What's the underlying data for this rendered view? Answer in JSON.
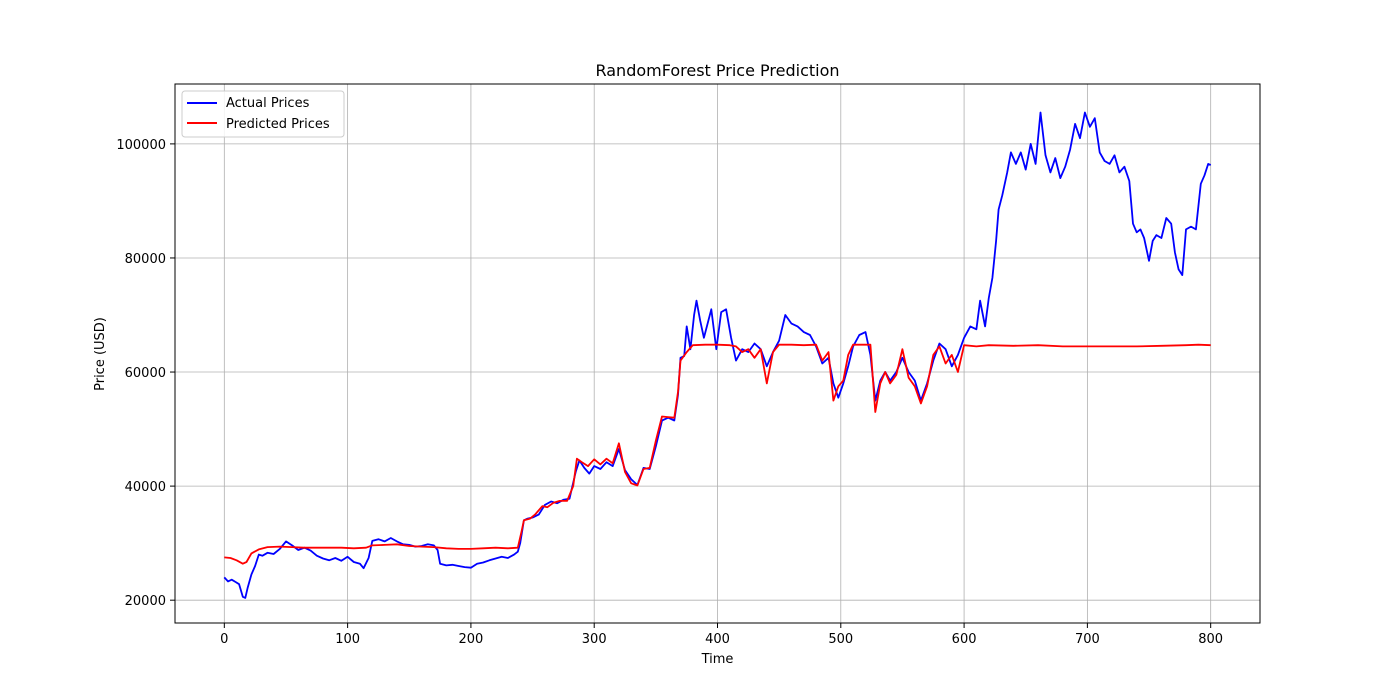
{
  "chart_data": {
    "type": "line",
    "title": "RandomForest Price Prediction",
    "xlabel": "Time",
    "ylabel": "Price (USD)",
    "xlim": [
      -40,
      840
    ],
    "ylim": [
      16000,
      110500
    ],
    "xticks": [
      0,
      100,
      200,
      300,
      400,
      500,
      600,
      700,
      800
    ],
    "yticks": [
      20000,
      40000,
      60000,
      80000,
      100000
    ],
    "grid": true,
    "legend_position": "upper-left",
    "series": [
      {
        "name": "Actual Prices",
        "color": "#0000ff",
        "points": [
          [
            0,
            24000
          ],
          [
            3,
            23300
          ],
          [
            6,
            23600
          ],
          [
            9,
            23200
          ],
          [
            12,
            22800
          ],
          [
            15,
            20600
          ],
          [
            17,
            20400
          ],
          [
            19,
            22200
          ],
          [
            22,
            24500
          ],
          [
            25,
            26000
          ],
          [
            28,
            28000
          ],
          [
            31,
            27800
          ],
          [
            35,
            28300
          ],
          [
            40,
            28100
          ],
          [
            45,
            29000
          ],
          [
            50,
            30300
          ],
          [
            55,
            29600
          ],
          [
            60,
            28800
          ],
          [
            65,
            29200
          ],
          [
            70,
            28700
          ],
          [
            75,
            27800
          ],
          [
            80,
            27300
          ],
          [
            85,
            27000
          ],
          [
            90,
            27400
          ],
          [
            95,
            26900
          ],
          [
            100,
            27600
          ],
          [
            105,
            26700
          ],
          [
            110,
            26400
          ],
          [
            113,
            25600
          ],
          [
            117,
            27400
          ],
          [
            120,
            30400
          ],
          [
            125,
            30700
          ],
          [
            130,
            30300
          ],
          [
            135,
            30900
          ],
          [
            140,
            30300
          ],
          [
            145,
            29800
          ],
          [
            150,
            29700
          ],
          [
            155,
            29400
          ],
          [
            160,
            29500
          ],
          [
            165,
            29800
          ],
          [
            170,
            29600
          ],
          [
            173,
            28800
          ],
          [
            175,
            26400
          ],
          [
            180,
            26100
          ],
          [
            185,
            26200
          ],
          [
            190,
            26000
          ],
          [
            195,
            25800
          ],
          [
            200,
            25700
          ],
          [
            205,
            26400
          ],
          [
            210,
            26600
          ],
          [
            215,
            27000
          ],
          [
            220,
            27300
          ],
          [
            225,
            27600
          ],
          [
            230,
            27400
          ],
          [
            235,
            28000
          ],
          [
            238,
            28500
          ],
          [
            240,
            30000
          ],
          [
            243,
            34000
          ],
          [
            246,
            34300
          ],
          [
            250,
            34500
          ],
          [
            255,
            35000
          ],
          [
            260,
            36700
          ],
          [
            265,
            37300
          ],
          [
            270,
            37000
          ],
          [
            275,
            37600
          ],
          [
            280,
            37800
          ],
          [
            285,
            42500
          ],
          [
            288,
            44500
          ],
          [
            292,
            43200
          ],
          [
            296,
            42200
          ],
          [
            300,
            43500
          ],
          [
            305,
            43000
          ],
          [
            310,
            44200
          ],
          [
            315,
            43500
          ],
          [
            320,
            46500
          ],
          [
            325,
            42800
          ],
          [
            330,
            41200
          ],
          [
            335,
            40200
          ],
          [
            340,
            43200
          ],
          [
            345,
            43000
          ],
          [
            350,
            47000
          ],
          [
            355,
            51500
          ],
          [
            360,
            52000
          ],
          [
            365,
            51500
          ],
          [
            368,
            56000
          ],
          [
            370,
            62500
          ],
          [
            373,
            62800
          ],
          [
            375,
            68000
          ],
          [
            378,
            64000
          ],
          [
            381,
            70000
          ],
          [
            383,
            72500
          ],
          [
            386,
            69000
          ],
          [
            389,
            66000
          ],
          [
            392,
            68500
          ],
          [
            395,
            71000
          ],
          [
            399,
            64000
          ],
          [
            403,
            70500
          ],
          [
            407,
            71000
          ],
          [
            411,
            66000
          ],
          [
            415,
            62000
          ],
          [
            420,
            64000
          ],
          [
            425,
            63500
          ],
          [
            430,
            65000
          ],
          [
            435,
            64000
          ],
          [
            440,
            61000
          ],
          [
            445,
            63500
          ],
          [
            450,
            65500
          ],
          [
            455,
            70000
          ],
          [
            460,
            68500
          ],
          [
            465,
            68000
          ],
          [
            470,
            67000
          ],
          [
            475,
            66500
          ],
          [
            480,
            64500
          ],
          [
            485,
            61500
          ],
          [
            490,
            62500
          ],
          [
            494,
            58000
          ],
          [
            498,
            55500
          ],
          [
            502,
            58000
          ],
          [
            506,
            61000
          ],
          [
            510,
            64500
          ],
          [
            515,
            66500
          ],
          [
            520,
            67000
          ],
          [
            524,
            63000
          ],
          [
            528,
            55000
          ],
          [
            532,
            58500
          ],
          [
            536,
            60000
          ],
          [
            540,
            58500
          ],
          [
            545,
            60000
          ],
          [
            550,
            62500
          ],
          [
            555,
            60000
          ],
          [
            560,
            58500
          ],
          [
            565,
            55000
          ],
          [
            570,
            58000
          ],
          [
            575,
            62000
          ],
          [
            580,
            65000
          ],
          [
            585,
            64000
          ],
          [
            590,
            61000
          ],
          [
            595,
            63000
          ],
          [
            600,
            66000
          ],
          [
            605,
            68000
          ],
          [
            610,
            67500
          ],
          [
            613,
            72500
          ],
          [
            617,
            68000
          ],
          [
            620,
            73000
          ],
          [
            623,
            76500
          ],
          [
            626,
            83000
          ],
          [
            628,
            88500
          ],
          [
            631,
            91000
          ],
          [
            635,
            95000
          ],
          [
            638,
            98500
          ],
          [
            642,
            96500
          ],
          [
            646,
            98500
          ],
          [
            650,
            95500
          ],
          [
            654,
            100000
          ],
          [
            658,
            96500
          ],
          [
            662,
            105500
          ],
          [
            666,
            98000
          ],
          [
            670,
            95000
          ],
          [
            674,
            97500
          ],
          [
            678,
            94000
          ],
          [
            682,
            96000
          ],
          [
            686,
            99000
          ],
          [
            690,
            103500
          ],
          [
            694,
            101000
          ],
          [
            698,
            105500
          ],
          [
            702,
            103000
          ],
          [
            706,
            104500
          ],
          [
            710,
            98500
          ],
          [
            714,
            97000
          ],
          [
            718,
            96500
          ],
          [
            722,
            98000
          ],
          [
            726,
            95000
          ],
          [
            730,
            96000
          ],
          [
            734,
            93500
          ],
          [
            737,
            86000
          ],
          [
            740,
            84500
          ],
          [
            743,
            85000
          ],
          [
            746,
            83500
          ],
          [
            750,
            79500
          ],
          [
            753,
            83000
          ],
          [
            756,
            84000
          ],
          [
            760,
            83500
          ],
          [
            764,
            87000
          ],
          [
            768,
            86000
          ],
          [
            771,
            81000
          ],
          [
            774,
            78000
          ],
          [
            777,
            77000
          ],
          [
            780,
            85000
          ],
          [
            784,
            85500
          ],
          [
            788,
            85000
          ],
          [
            792,
            93000
          ],
          [
            795,
            94500
          ],
          [
            798,
            96500
          ],
          [
            800,
            96300
          ]
        ]
      },
      {
        "name": "Predicted Prices",
        "color": "#ff0000",
        "points": [
          [
            0,
            27500
          ],
          [
            5,
            27400
          ],
          [
            10,
            27000
          ],
          [
            15,
            26400
          ],
          [
            18,
            26700
          ],
          [
            22,
            28200
          ],
          [
            28,
            28900
          ],
          [
            35,
            29300
          ],
          [
            45,
            29400
          ],
          [
            55,
            29300
          ],
          [
            65,
            29200
          ],
          [
            75,
            29200
          ],
          [
            85,
            29200
          ],
          [
            95,
            29200
          ],
          [
            105,
            29100
          ],
          [
            115,
            29200
          ],
          [
            120,
            29600
          ],
          [
            130,
            29700
          ],
          [
            140,
            29800
          ],
          [
            150,
            29500
          ],
          [
            160,
            29400
          ],
          [
            170,
            29300
          ],
          [
            180,
            29100
          ],
          [
            190,
            29000
          ],
          [
            200,
            29000
          ],
          [
            210,
            29100
          ],
          [
            220,
            29200
          ],
          [
            230,
            29100
          ],
          [
            238,
            29200
          ],
          [
            241,
            32000
          ],
          [
            243,
            34000
          ],
          [
            248,
            34300
          ],
          [
            252,
            35000
          ],
          [
            258,
            36500
          ],
          [
            262,
            36300
          ],
          [
            267,
            37100
          ],
          [
            272,
            37400
          ],
          [
            278,
            37400
          ],
          [
            283,
            40000
          ],
          [
            286,
            44800
          ],
          [
            290,
            44200
          ],
          [
            295,
            43500
          ],
          [
            300,
            44700
          ],
          [
            305,
            43800
          ],
          [
            310,
            44800
          ],
          [
            315,
            44000
          ],
          [
            320,
            47500
          ],
          [
            325,
            42500
          ],
          [
            330,
            40500
          ],
          [
            335,
            40100
          ],
          [
            340,
            43000
          ],
          [
            345,
            43200
          ],
          [
            350,
            48000
          ],
          [
            355,
            52200
          ],
          [
            360,
            52100
          ],
          [
            365,
            52000
          ],
          [
            368,
            56500
          ],
          [
            370,
            62000
          ],
          [
            375,
            63500
          ],
          [
            380,
            64700
          ],
          [
            390,
            64800
          ],
          [
            400,
            64800
          ],
          [
            410,
            64700
          ],
          [
            415,
            64500
          ],
          [
            420,
            63500
          ],
          [
            425,
            64000
          ],
          [
            430,
            62500
          ],
          [
            435,
            64000
          ],
          [
            440,
            58000
          ],
          [
            445,
            63500
          ],
          [
            450,
            64800
          ],
          [
            460,
            64800
          ],
          [
            470,
            64700
          ],
          [
            480,
            64800
          ],
          [
            485,
            62000
          ],
          [
            490,
            63500
          ],
          [
            494,
            55000
          ],
          [
            498,
            57500
          ],
          [
            502,
            58500
          ],
          [
            506,
            63000
          ],
          [
            510,
            64800
          ],
          [
            520,
            64800
          ],
          [
            524,
            64800
          ],
          [
            528,
            53000
          ],
          [
            532,
            58000
          ],
          [
            536,
            60000
          ],
          [
            540,
            58000
          ],
          [
            545,
            59500
          ],
          [
            550,
            64000
          ],
          [
            555,
            59000
          ],
          [
            560,
            57500
          ],
          [
            565,
            54500
          ],
          [
            570,
            57500
          ],
          [
            575,
            63000
          ],
          [
            580,
            64500
          ],
          [
            585,
            61500
          ],
          [
            590,
            63000
          ],
          [
            595,
            60000
          ],
          [
            600,
            64700
          ],
          [
            610,
            64500
          ],
          [
            620,
            64700
          ],
          [
            640,
            64600
          ],
          [
            660,
            64700
          ],
          [
            680,
            64500
          ],
          [
            700,
            64500
          ],
          [
            720,
            64500
          ],
          [
            740,
            64500
          ],
          [
            760,
            64600
          ],
          [
            780,
            64700
          ],
          [
            790,
            64800
          ],
          [
            800,
            64700
          ]
        ]
      }
    ]
  }
}
